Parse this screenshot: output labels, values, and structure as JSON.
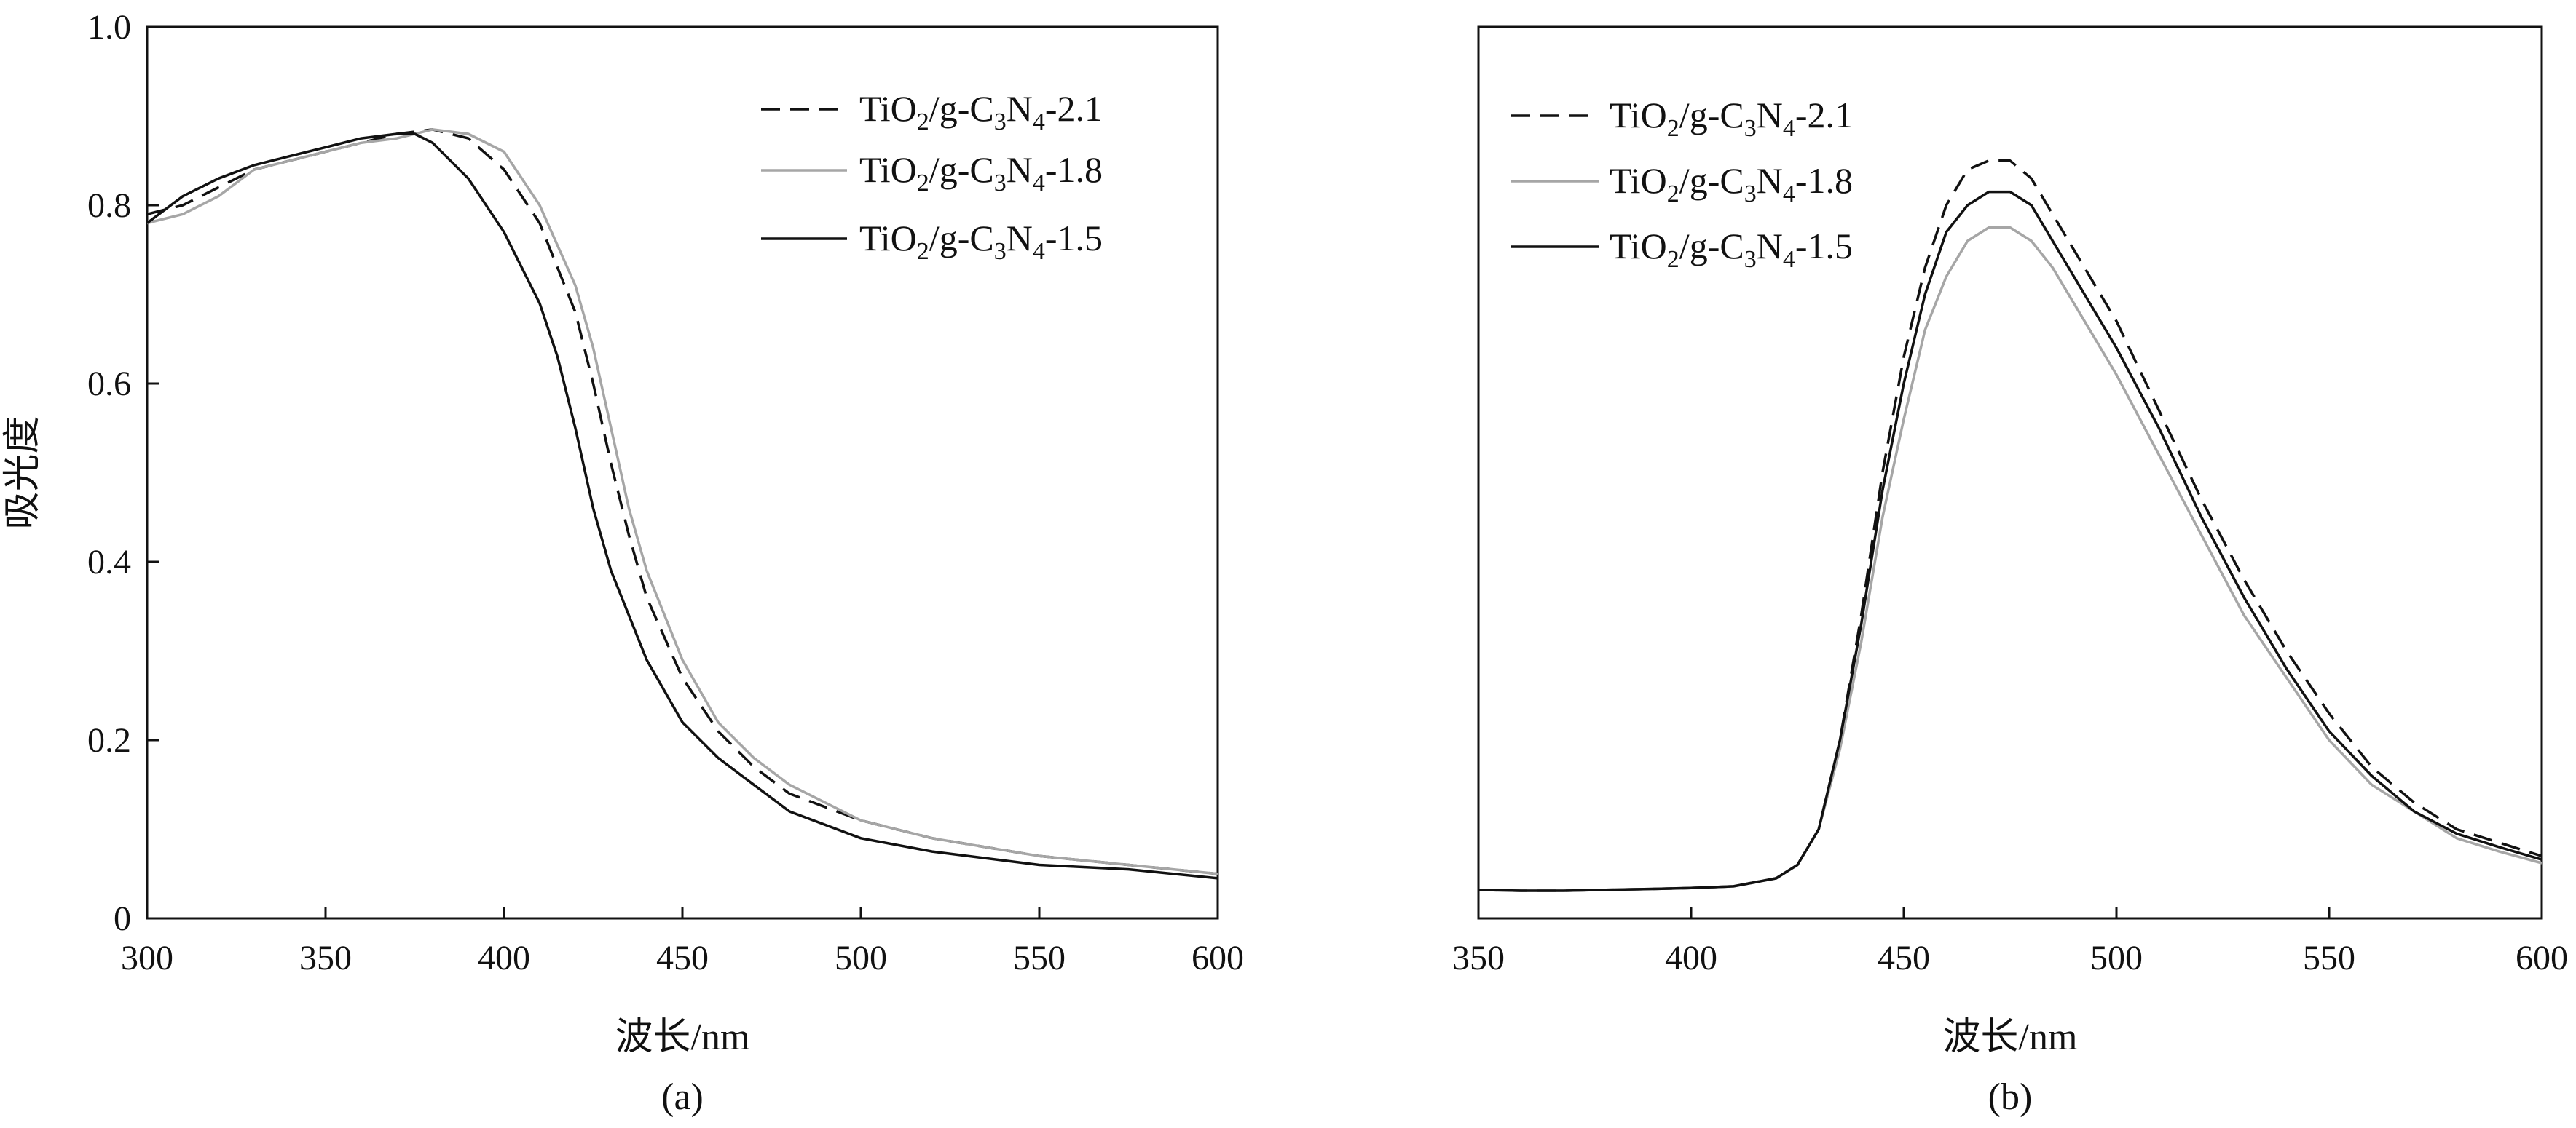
{
  "chart_data": [
    {
      "type": "line",
      "panel_label": "(a)",
      "xlabel": "波长/nm",
      "ylabel": "吸光度",
      "xlim": [
        300,
        600
      ],
      "ylim": [
        0,
        1.0
      ],
      "xticks": [
        "300",
        "350",
        "400",
        "450",
        "500",
        "550",
        "600"
      ],
      "yticks": [
        "0",
        "0.2",
        "0.4",
        "0.6",
        "0.8",
        "1.0"
      ],
      "legend_position": "top-right",
      "series": [
        {
          "name": "TiO2/g-C3N4-2.1",
          "color": "#111111",
          "dash": "dashed",
          "x": [
            300,
            310,
            320,
            330,
            340,
            350,
            360,
            370,
            380,
            390,
            400,
            410,
            420,
            425,
            430,
            435,
            440,
            450,
            460,
            470,
            480,
            500,
            520,
            550,
            575,
            600
          ],
          "y": [
            0.79,
            0.8,
            0.82,
            0.84,
            0.85,
            0.86,
            0.87,
            0.88,
            0.885,
            0.875,
            0.84,
            0.78,
            0.68,
            0.6,
            0.51,
            0.43,
            0.36,
            0.27,
            0.21,
            0.17,
            0.14,
            0.11,
            0.09,
            0.07,
            0.06,
            0.05
          ]
        },
        {
          "name": "TiO2/g-C3N4-1.8",
          "color": "#a6a6a6",
          "dash": "solid",
          "x": [
            300,
            310,
            320,
            330,
            340,
            350,
            360,
            370,
            380,
            390,
            400,
            410,
            420,
            425,
            430,
            435,
            440,
            450,
            460,
            470,
            480,
            500,
            520,
            550,
            575,
            600
          ],
          "y": [
            0.78,
            0.79,
            0.81,
            0.84,
            0.85,
            0.86,
            0.87,
            0.875,
            0.885,
            0.88,
            0.86,
            0.8,
            0.71,
            0.64,
            0.55,
            0.46,
            0.39,
            0.29,
            0.22,
            0.18,
            0.15,
            0.11,
            0.09,
            0.07,
            0.06,
            0.05
          ]
        },
        {
          "name": "TiO2/g-C3N4-1.5",
          "color": "#111111",
          "dash": "solid",
          "x": [
            300,
            310,
            320,
            330,
            340,
            350,
            360,
            370,
            375,
            380,
            390,
            400,
            410,
            415,
            420,
            425,
            430,
            440,
            450,
            460,
            470,
            480,
            500,
            520,
            550,
            575,
            600
          ],
          "y": [
            0.78,
            0.81,
            0.83,
            0.845,
            0.855,
            0.865,
            0.875,
            0.88,
            0.88,
            0.87,
            0.83,
            0.77,
            0.69,
            0.63,
            0.55,
            0.46,
            0.39,
            0.29,
            0.22,
            0.18,
            0.15,
            0.12,
            0.09,
            0.075,
            0.06,
            0.055,
            0.045
          ]
        }
      ]
    },
    {
      "type": "line",
      "panel_label": "(b)",
      "xlabel": "波长/nm",
      "ylabel": "",
      "xlim": [
        350,
        600
      ],
      "ylim": [
        0,
        1.0
      ],
      "xticks": [
        "350",
        "400",
        "450",
        "500",
        "550",
        "600"
      ],
      "yticks": [],
      "legend_position": "top-left",
      "series": [
        {
          "name": "TiO2/g-C3N4-2.1",
          "color": "#111111",
          "dash": "dashed",
          "x": [
            350,
            360,
            370,
            380,
            390,
            400,
            410,
            420,
            425,
            430,
            435,
            440,
            445,
            450,
            455,
            460,
            465,
            470,
            475,
            480,
            485,
            490,
            500,
            510,
            520,
            530,
            540,
            550,
            560,
            570,
            580,
            590,
            600
          ],
          "y": [
            0.032,
            0.031,
            0.031,
            0.032,
            0.033,
            0.034,
            0.036,
            0.045,
            0.06,
            0.1,
            0.2,
            0.34,
            0.5,
            0.63,
            0.73,
            0.8,
            0.84,
            0.85,
            0.85,
            0.83,
            0.79,
            0.75,
            0.67,
            0.57,
            0.47,
            0.38,
            0.3,
            0.23,
            0.17,
            0.13,
            0.1,
            0.085,
            0.07
          ]
        },
        {
          "name": "TiO2/g-C3N4-1.8",
          "color": "#a6a6a6",
          "dash": "solid",
          "x": [
            350,
            360,
            370,
            380,
            390,
            400,
            410,
            420,
            425,
            430,
            435,
            440,
            445,
            450,
            455,
            460,
            465,
            470,
            475,
            480,
            485,
            490,
            500,
            510,
            520,
            530,
            540,
            550,
            560,
            570,
            580,
            590,
            600
          ],
          "y": [
            0.032,
            0.031,
            0.031,
            0.032,
            0.033,
            0.034,
            0.036,
            0.045,
            0.06,
            0.1,
            0.19,
            0.31,
            0.45,
            0.56,
            0.66,
            0.72,
            0.76,
            0.775,
            0.775,
            0.76,
            0.73,
            0.69,
            0.61,
            0.52,
            0.43,
            0.34,
            0.27,
            0.2,
            0.15,
            0.12,
            0.09,
            0.075,
            0.062
          ]
        },
        {
          "name": "TiO2/g-C3N4-1.5",
          "color": "#111111",
          "dash": "solid",
          "x": [
            350,
            360,
            370,
            380,
            390,
            400,
            410,
            420,
            425,
            430,
            435,
            440,
            445,
            450,
            455,
            460,
            465,
            470,
            475,
            480,
            485,
            490,
            500,
            510,
            520,
            530,
            540,
            550,
            560,
            570,
            580,
            590,
            600
          ],
          "y": [
            0.032,
            0.031,
            0.031,
            0.032,
            0.033,
            0.034,
            0.036,
            0.045,
            0.06,
            0.1,
            0.2,
            0.33,
            0.48,
            0.6,
            0.7,
            0.77,
            0.8,
            0.815,
            0.815,
            0.8,
            0.76,
            0.72,
            0.64,
            0.55,
            0.45,
            0.36,
            0.28,
            0.21,
            0.16,
            0.12,
            0.095,
            0.08,
            0.066
          ]
        }
      ]
    }
  ]
}
